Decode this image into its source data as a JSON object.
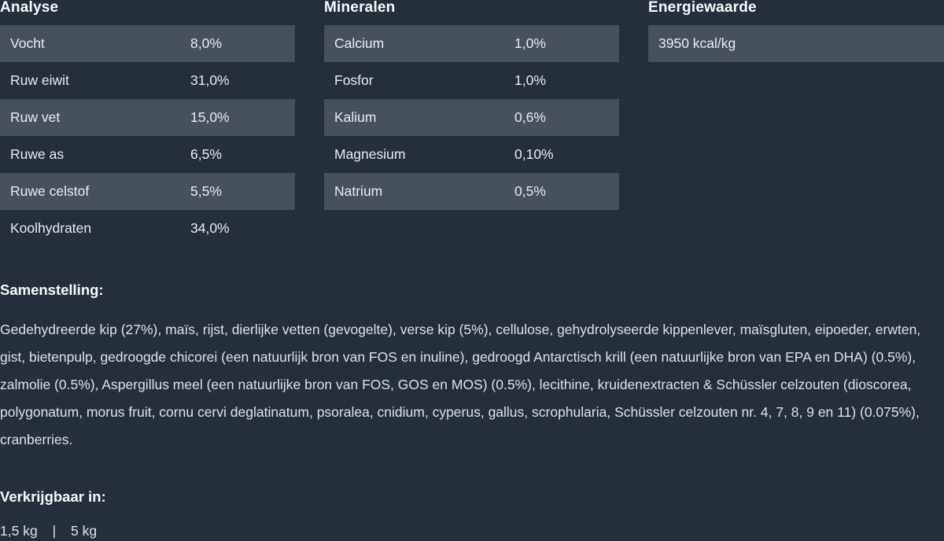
{
  "theme": {
    "background": "#242F3B",
    "stripe": "#47515D",
    "heading_text": "#F8FAFB",
    "row_text": "#E9ECEF",
    "body_text": "#DDE2E7"
  },
  "tables": {
    "analyse": {
      "title": "Analyse",
      "rows": [
        {
          "label": "Vocht",
          "value": "8,0%"
        },
        {
          "label": "Ruw eiwit",
          "value": "31,0%"
        },
        {
          "label": "Ruw vet",
          "value": "15,0%"
        },
        {
          "label": "Ruwe as",
          "value": "6,5%"
        },
        {
          "label": "Ruwe celstof",
          "value": "5,5%"
        },
        {
          "label": "Koolhydraten",
          "value": "34,0%"
        }
      ]
    },
    "mineralen": {
      "title": "Mineralen",
      "rows": [
        {
          "label": "Calcium",
          "value": "1,0%"
        },
        {
          "label": "Fosfor",
          "value": "1,0%"
        },
        {
          "label": "Kalium",
          "value": "0,6%"
        },
        {
          "label": "Magnesium",
          "value": "0,10%"
        },
        {
          "label": "Natrium",
          "value": "0,5%"
        }
      ]
    },
    "energiewaarde": {
      "title": "Energiewaarde",
      "rows": [
        {
          "label": "3950 kcal/kg",
          "value": ""
        }
      ]
    }
  },
  "samenstelling": {
    "title": "Samenstelling:",
    "text": "Gedehydreerde kip (27%), maïs, rijst, dierlijke vetten (gevogelte), verse kip (5%), cellulose, gehydrolyseerde kippenlever, maïsgluten, eipoeder, erwten, gist, bietenpulp, gedroogde chicorei (een natuurlijk bron van FOS en inuline), gedroogd Antarctisch krill (een natuurlijke bron van EPA en DHA) (0.5%), zalmolie (0.5%), Aspergillus meel (een natuurlijke bron van FOS, GOS en MOS) (0.5%), lecithine, kruidenextracten & Schüssler celzouten (dioscorea, polygonatum, morus fruit, cornu cervi deglatinatum, psoralea, cnidium, cyperus, gallus, scrophularia, Schüssler celzouten nr. 4, 7, 8, 9 en 11) (0.075%), cranberries."
  },
  "verkrijgbaar": {
    "title": "Verkrijgbaar in:",
    "sizes": [
      "1,5 kg",
      "5 kg"
    ],
    "separator": "|"
  }
}
